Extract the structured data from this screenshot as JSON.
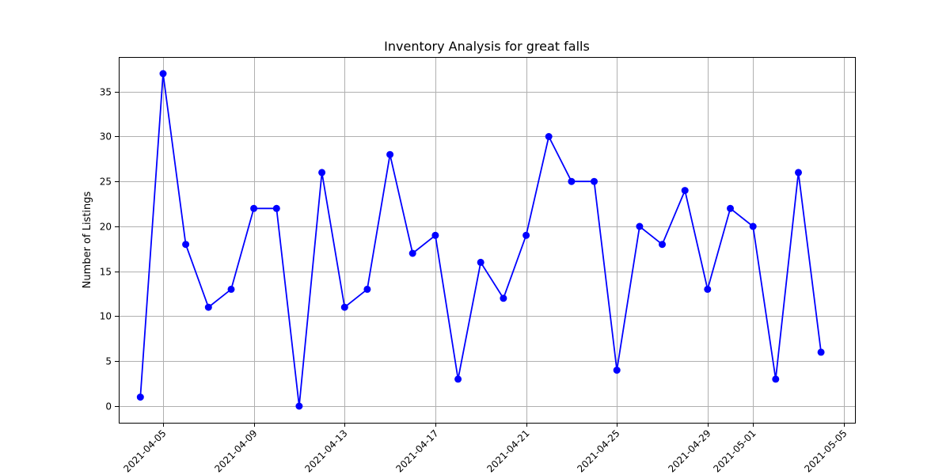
{
  "chart_data": {
    "type": "line",
    "title": "Inventory Analysis for great falls",
    "xlabel": "",
    "ylabel": "Number of Listings",
    "x": [
      "2021-04-04",
      "2021-04-05",
      "2021-04-06",
      "2021-04-07",
      "2021-04-08",
      "2021-04-09",
      "2021-04-10",
      "2021-04-11",
      "2021-04-12",
      "2021-04-13",
      "2021-04-14",
      "2021-04-15",
      "2021-04-16",
      "2021-04-17",
      "2021-04-18",
      "2021-04-19",
      "2021-04-20",
      "2021-04-21",
      "2021-04-22",
      "2021-04-23",
      "2021-04-24",
      "2021-04-25",
      "2021-04-26",
      "2021-04-27",
      "2021-04-28",
      "2021-04-29",
      "2021-04-30",
      "2021-05-01",
      "2021-05-02",
      "2021-05-03",
      "2021-05-04"
    ],
    "series": [
      {
        "values": [
          1,
          37,
          18,
          11,
          13,
          22,
          22,
          0,
          26,
          11,
          13,
          28,
          17,
          19,
          3,
          16,
          12,
          19,
          30,
          25,
          25,
          4,
          20,
          18,
          24,
          13,
          22,
          20,
          3,
          26,
          6
        ],
        "color": "#0000ff",
        "marker": "circle"
      }
    ],
    "xticks": [
      "2021-04-05",
      "2021-04-09",
      "2021-04-13",
      "2021-04-17",
      "2021-04-21",
      "2021-04-25",
      "2021-04-29",
      "2021-05-01",
      "2021-05-05"
    ],
    "xlim": [
      "2021-04-03T01:08",
      "2021-05-05T11:53"
    ],
    "ylim": [
      -1.85,
      38.85
    ],
    "yticks": [
      0,
      5,
      10,
      15,
      20,
      25,
      30,
      35
    ],
    "grid": true,
    "legend": "none"
  }
}
